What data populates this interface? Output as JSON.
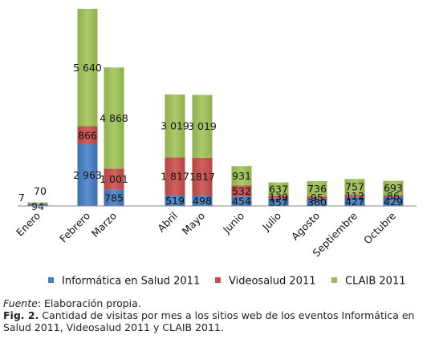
{
  "chart_data": {
    "type": "bar",
    "stacked": true,
    "categories": [
      "Enero",
      "Febrero",
      "Marzo",
      "Abril",
      "Mayo",
      "Junio",
      "Julio",
      "Agosto",
      "Septiembre",
      "Octubre"
    ],
    "series": [
      {
        "name": "Informática en Salud 2011",
        "color": "#4a7ebb",
        "values": [
          94,
          2963,
          785,
          519,
          498,
          454,
          357,
          360,
          427,
          429
        ],
        "labels": [
          "94",
          "2 963",
          "785",
          "519",
          "498",
          "454",
          "357",
          "360",
          "427",
          "429"
        ]
      },
      {
        "name": "Videosalud 2011",
        "color": "#c0504d",
        "values": [
          7,
          866,
          1001,
          1817,
          1817,
          532,
          139,
          95,
          112,
          86
        ],
        "labels": [
          "7",
          "866",
          "1 001",
          "1 817",
          "1817",
          "532",
          "139",
          "95",
          "112",
          "86"
        ]
      },
      {
        "name": "CLAIB 2011",
        "color": "#9bbb59",
        "values": [
          70,
          5640,
          4868,
          3019,
          3019,
          931,
          637,
          736,
          757,
          693
        ],
        "labels": [
          "70",
          "5 640",
          "4 868",
          "3 019",
          "3 019",
          "931",
          "637",
          "736",
          "757",
          "693"
        ]
      }
    ],
    "legend_position": "bottom",
    "grid": false
  },
  "caption": {
    "fuente_label": "Fuente",
    "fuente_text": ": Elaboración propia.",
    "fig_label": "Fig. 2.",
    "fig_text": " Cantidad de visitas por mes a los sitios web de los eventos Informática en Salud 2011, Videosalud 2011 y CLAIB 2011."
  }
}
